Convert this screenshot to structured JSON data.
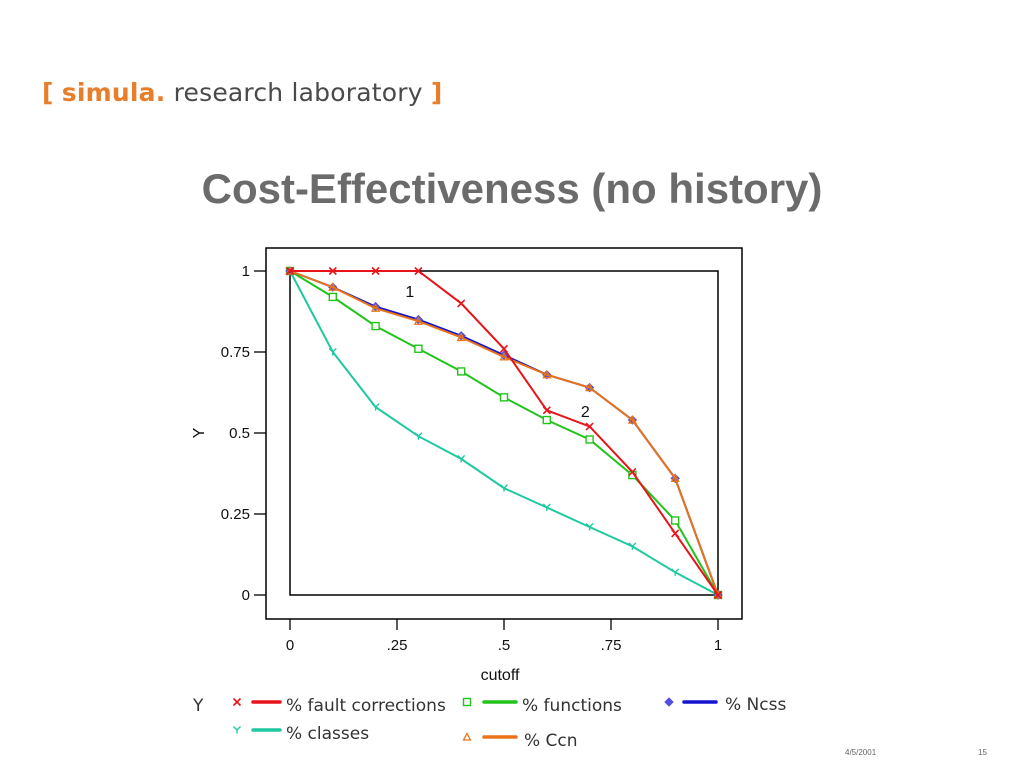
{
  "header": {
    "logo_open": "[",
    "logo_simula": "simula",
    "logo_dot": ".",
    "logo_rest": "research laboratory",
    "logo_close": "]"
  },
  "slide": {
    "title": "Cost-Effectiveness (no history)",
    "date": "4/5/2001",
    "page": "15"
  },
  "chart_data": {
    "type": "line",
    "xlabel": "cutoff",
    "ylabel": "Y",
    "xlim": [
      0,
      1
    ],
    "ylim": [
      0,
      1
    ],
    "x_ticks": [
      0,
      0.25,
      0.5,
      0.75,
      1
    ],
    "x_tick_labels": [
      "0",
      ".25",
      ".5",
      ".75",
      "1"
    ],
    "y_ticks": [
      0,
      0.25,
      0.5,
      0.75,
      1
    ],
    "y_tick_labels": [
      "0",
      "0.25",
      "0.5",
      "0.75",
      "1"
    ],
    "grid": false,
    "legend_title": "Y",
    "legend_position": "bottom",
    "x": [
      0,
      0.1,
      0.2,
      0.3,
      0.4,
      0.5,
      0.6,
      0.7,
      0.8,
      0.9,
      1
    ],
    "series": [
      {
        "name": "% fault corrections",
        "color": "#e8141a",
        "marker_color": "#e8141a",
        "marker": "x",
        "values": [
          1,
          1,
          1,
          1,
          0.9,
          0.76,
          0.57,
          0.52,
          0.38,
          0.19,
          0
        ]
      },
      {
        "name": "% functions",
        "color": "#22c41c",
        "marker_color": "#22c41c",
        "marker": "square",
        "values": [
          1,
          0.92,
          0.83,
          0.76,
          0.69,
          0.61,
          0.54,
          0.48,
          0.37,
          0.23,
          0
        ]
      },
      {
        "name": "% Ncss",
        "color": "#1414d0",
        "marker_color": "#5050e0",
        "marker": "diamond",
        "values": [
          1,
          0.95,
          0.89,
          0.85,
          0.8,
          0.74,
          0.68,
          0.64,
          0.54,
          0.36,
          0
        ]
      },
      {
        "name": "% classes",
        "color": "#1ec9a0",
        "marker_color": "#1ec9a0",
        "marker": "y",
        "values": [
          1,
          0.75,
          0.58,
          0.49,
          0.42,
          0.33,
          0.27,
          0.21,
          0.15,
          0.07,
          0
        ]
      },
      {
        "name": "% Ccn",
        "color": "#e8741a",
        "marker_color": "#e8741a",
        "marker": "triangle",
        "values": [
          1,
          0.95,
          0.885,
          0.845,
          0.795,
          0.735,
          0.68,
          0.64,
          0.54,
          0.36,
          0
        ]
      }
    ],
    "annotations": [
      {
        "text": "1",
        "x": 0.28,
        "y": 0.92
      },
      {
        "text": "2",
        "x": 0.69,
        "y": 0.55
      }
    ]
  }
}
